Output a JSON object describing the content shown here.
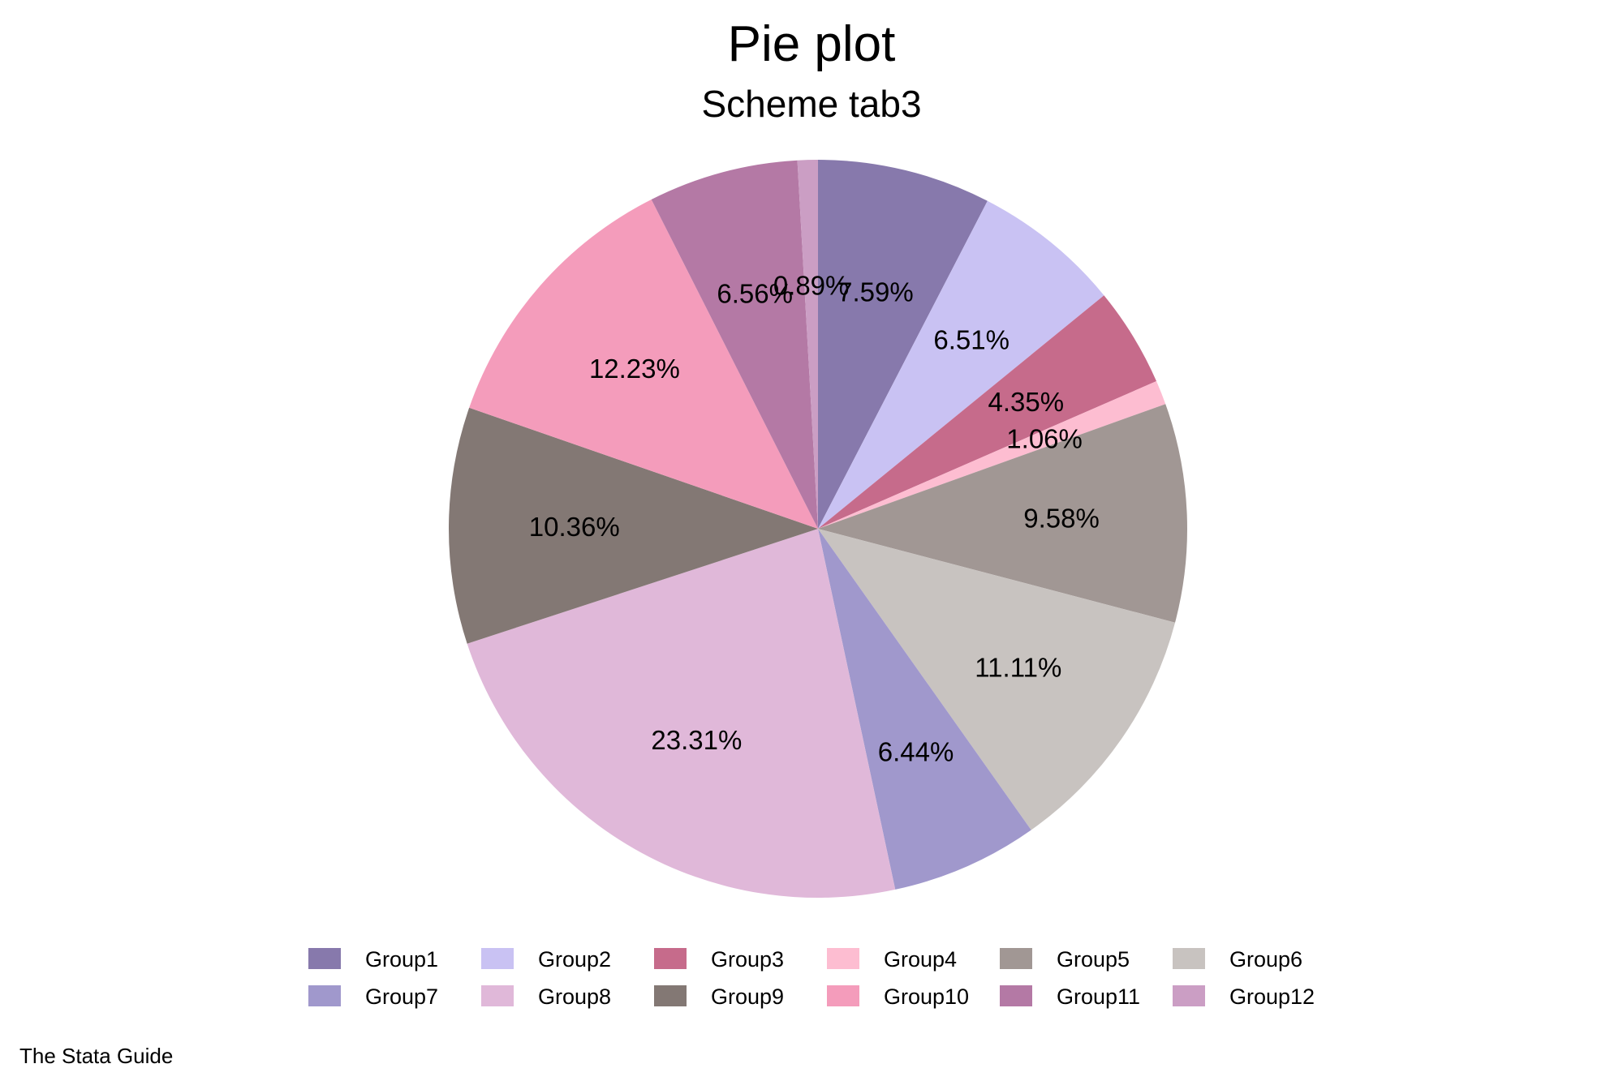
{
  "chart_data": {
    "type": "pie",
    "title": "Pie plot",
    "subtitle": "Scheme tab3",
    "note": "The Stata Guide",
    "legend_position": "bottom",
    "start_angle": "12 o'clock",
    "direction": "clockwise",
    "slices": [
      {
        "name": "Group1",
        "value": 7.59,
        "label": "7.59%",
        "color": "#8779ac"
      },
      {
        "name": "Group2",
        "value": 6.51,
        "label": "6.51%",
        "color": "#c9c2f3"
      },
      {
        "name": "Group3",
        "value": 4.35,
        "label": "4.35%",
        "color": "#c66b8b"
      },
      {
        "name": "Group4",
        "value": 1.06,
        "label": "1.06%",
        "color": "#fdbdd1"
      },
      {
        "name": "Group5",
        "value": 9.58,
        "label": "9.58%",
        "color": "#a19794"
      },
      {
        "name": "Group6",
        "value": 11.11,
        "label": "11.11%",
        "color": "#c8c3c0"
      },
      {
        "name": "Group7",
        "value": 6.44,
        "label": "6.44%",
        "color": "#a098cc"
      },
      {
        "name": "Group8",
        "value": 23.31,
        "label": "23.31%",
        "color": "#e0b8d9"
      },
      {
        "name": "Group9",
        "value": 10.36,
        "label": "10.36%",
        "color": "#837874"
      },
      {
        "name": "Group10",
        "value": 12.23,
        "label": "12.23%",
        "color": "#f49cbb"
      },
      {
        "name": "Group11",
        "value": 6.56,
        "label": "6.56%",
        "color": "#b479a5"
      },
      {
        "name": "Group12",
        "value": 0.89,
        "label": "0.89%",
        "color": "#cb9ec4"
      }
    ]
  }
}
